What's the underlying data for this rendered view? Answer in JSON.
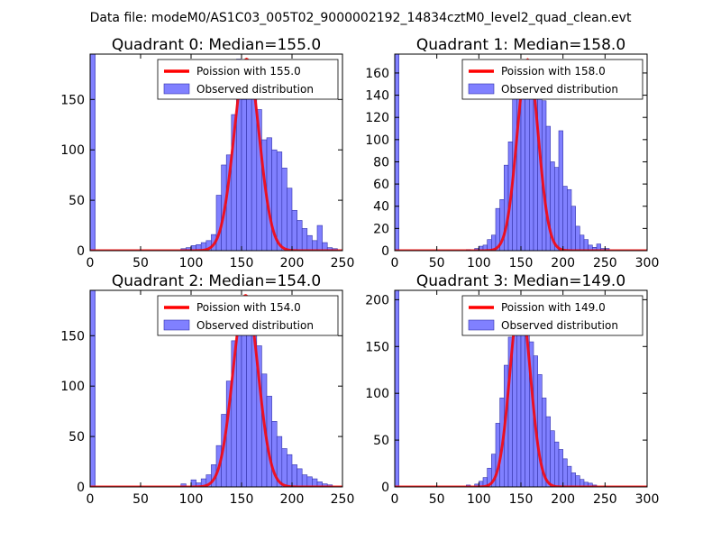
{
  "figure": {
    "suptitle": "Data file: modeM0/AS1C03_005T02_9000002192_14834cztM0_level2_quad_clean.evt"
  },
  "colors": {
    "hist_fill": "#8080ff",
    "hist_edge": "#3333aa",
    "poisson_line": "#ff0000",
    "axes": "#000000",
    "background": "#ffffff"
  },
  "chart_data": [
    {
      "type": "bar",
      "title": "Quadrant 0: Median=155.0",
      "median": 155.0,
      "xlim": [
        0,
        250
      ],
      "ylim": [
        0,
        195
      ],
      "xticks": [
        0,
        50,
        100,
        150,
        200,
        250
      ],
      "yticks": [
        0,
        50,
        100,
        150
      ],
      "bin_width": 5,
      "bins": [
        {
          "x": 0,
          "count": 195
        },
        {
          "x": 90,
          "count": 2
        },
        {
          "x": 95,
          "count": 3
        },
        {
          "x": 100,
          "count": 5
        },
        {
          "x": 105,
          "count": 6
        },
        {
          "x": 110,
          "count": 8
        },
        {
          "x": 115,
          "count": 10
        },
        {
          "x": 120,
          "count": 16
        },
        {
          "x": 125,
          "count": 55
        },
        {
          "x": 130,
          "count": 85
        },
        {
          "x": 135,
          "count": 95
        },
        {
          "x": 140,
          "count": 135
        },
        {
          "x": 145,
          "count": 190
        },
        {
          "x": 150,
          "count": 150
        },
        {
          "x": 155,
          "count": 185
        },
        {
          "x": 160,
          "count": 168
        },
        {
          "x": 165,
          "count": 140
        },
        {
          "x": 170,
          "count": 110
        },
        {
          "x": 175,
          "count": 112
        },
        {
          "x": 180,
          "count": 100
        },
        {
          "x": 185,
          "count": 98
        },
        {
          "x": 190,
          "count": 82
        },
        {
          "x": 195,
          "count": 62
        },
        {
          "x": 200,
          "count": 40
        },
        {
          "x": 205,
          "count": 30
        },
        {
          "x": 210,
          "count": 22
        },
        {
          "x": 215,
          "count": 15
        },
        {
          "x": 220,
          "count": 10
        },
        {
          "x": 225,
          "count": 25
        },
        {
          "x": 230,
          "count": 8
        },
        {
          "x": 235,
          "count": 3
        },
        {
          "x": 240,
          "count": 2
        }
      ],
      "poisson": {
        "lambda": 155.0,
        "peak": 190
      },
      "legend": {
        "location": "upper-right",
        "line_label": "Poission with 155.0",
        "bar_label": "Observed distribution"
      }
    },
    {
      "type": "bar",
      "title": "Quadrant 1: Median=158.0",
      "median": 158.0,
      "xlim": [
        0,
        300
      ],
      "ylim": [
        0,
        177
      ],
      "xticks": [
        0,
        50,
        100,
        150,
        200,
        250,
        300
      ],
      "yticks": [
        0,
        20,
        40,
        60,
        80,
        100,
        120,
        140,
        160
      ],
      "bin_width": 5,
      "bins": [
        {
          "x": 0,
          "count": 177
        },
        {
          "x": 85,
          "count": 1
        },
        {
          "x": 95,
          "count": 2
        },
        {
          "x": 100,
          "count": 4
        },
        {
          "x": 105,
          "count": 5
        },
        {
          "x": 110,
          "count": 10
        },
        {
          "x": 115,
          "count": 14
        },
        {
          "x": 120,
          "count": 38
        },
        {
          "x": 125,
          "count": 46
        },
        {
          "x": 130,
          "count": 77
        },
        {
          "x": 135,
          "count": 98
        },
        {
          "x": 140,
          "count": 138
        },
        {
          "x": 145,
          "count": 155
        },
        {
          "x": 150,
          "count": 140
        },
        {
          "x": 155,
          "count": 172
        },
        {
          "x": 160,
          "count": 138
        },
        {
          "x": 165,
          "count": 155
        },
        {
          "x": 170,
          "count": 140
        },
        {
          "x": 175,
          "count": 135
        },
        {
          "x": 180,
          "count": 112
        },
        {
          "x": 185,
          "count": 80
        },
        {
          "x": 190,
          "count": 75
        },
        {
          "x": 195,
          "count": 108
        },
        {
          "x": 200,
          "count": 58
        },
        {
          "x": 205,
          "count": 55
        },
        {
          "x": 210,
          "count": 40
        },
        {
          "x": 215,
          "count": 22
        },
        {
          "x": 220,
          "count": 14
        },
        {
          "x": 225,
          "count": 10
        },
        {
          "x": 230,
          "count": 5
        },
        {
          "x": 235,
          "count": 3
        },
        {
          "x": 240,
          "count": 6
        },
        {
          "x": 245,
          "count": 2
        },
        {
          "x": 250,
          "count": 2
        }
      ],
      "poisson": {
        "lambda": 158.0,
        "peak": 172
      },
      "legend": {
        "location": "upper-right",
        "line_label": "Poission with 158.0",
        "bar_label": "Observed distribution"
      }
    },
    {
      "type": "bar",
      "title": "Quadrant 2: Median=154.0",
      "median": 154.0,
      "xlim": [
        0,
        250
      ],
      "ylim": [
        0,
        195
      ],
      "xticks": [
        0,
        50,
        100,
        150,
        200,
        250
      ],
      "yticks": [
        0,
        50,
        100,
        150
      ],
      "bin_width": 5,
      "bins": [
        {
          "x": 0,
          "count": 195
        },
        {
          "x": 90,
          "count": 3
        },
        {
          "x": 100,
          "count": 7
        },
        {
          "x": 105,
          "count": 4
        },
        {
          "x": 110,
          "count": 8
        },
        {
          "x": 115,
          "count": 12
        },
        {
          "x": 120,
          "count": 22
        },
        {
          "x": 125,
          "count": 41
        },
        {
          "x": 130,
          "count": 72
        },
        {
          "x": 135,
          "count": 105
        },
        {
          "x": 140,
          "count": 145
        },
        {
          "x": 145,
          "count": 160
        },
        {
          "x": 150,
          "count": 175
        },
        {
          "x": 155,
          "count": 188
        },
        {
          "x": 160,
          "count": 160
        },
        {
          "x": 165,
          "count": 140
        },
        {
          "x": 170,
          "count": 112
        },
        {
          "x": 175,
          "count": 90
        },
        {
          "x": 180,
          "count": 65
        },
        {
          "x": 185,
          "count": 50
        },
        {
          "x": 190,
          "count": 38
        },
        {
          "x": 195,
          "count": 32
        },
        {
          "x": 200,
          "count": 22
        },
        {
          "x": 205,
          "count": 18
        },
        {
          "x": 210,
          "count": 12
        },
        {
          "x": 215,
          "count": 10
        },
        {
          "x": 220,
          "count": 8
        },
        {
          "x": 225,
          "count": 5
        },
        {
          "x": 230,
          "count": 3
        },
        {
          "x": 235,
          "count": 2
        }
      ],
      "poisson": {
        "lambda": 154.0,
        "peak": 190
      },
      "legend": {
        "location": "upper-right",
        "line_label": "Poission with 154.0",
        "bar_label": "Observed distribution"
      }
    },
    {
      "type": "bar",
      "title": "Quadrant 3: Median=149.0",
      "median": 149.0,
      "xlim": [
        0,
        300
      ],
      "ylim": [
        0,
        210
      ],
      "xticks": [
        0,
        50,
        100,
        150,
        200,
        250,
        300
      ],
      "yticks": [
        0,
        50,
        100,
        150,
        200
      ],
      "bin_width": 5,
      "bins": [
        {
          "x": 0,
          "count": 210
        },
        {
          "x": 85,
          "count": 2
        },
        {
          "x": 95,
          "count": 3
        },
        {
          "x": 100,
          "count": 6
        },
        {
          "x": 105,
          "count": 10
        },
        {
          "x": 110,
          "count": 20
        },
        {
          "x": 115,
          "count": 35
        },
        {
          "x": 120,
          "count": 68
        },
        {
          "x": 125,
          "count": 95
        },
        {
          "x": 130,
          "count": 130
        },
        {
          "x": 135,
          "count": 160
        },
        {
          "x": 140,
          "count": 180
        },
        {
          "x": 145,
          "count": 188
        },
        {
          "x": 150,
          "count": 192
        },
        {
          "x": 155,
          "count": 175
        },
        {
          "x": 160,
          "count": 155
        },
        {
          "x": 165,
          "count": 140
        },
        {
          "x": 170,
          "count": 120
        },
        {
          "x": 175,
          "count": 95
        },
        {
          "x": 180,
          "count": 75
        },
        {
          "x": 185,
          "count": 60
        },
        {
          "x": 190,
          "count": 48
        },
        {
          "x": 195,
          "count": 40
        },
        {
          "x": 200,
          "count": 30
        },
        {
          "x": 205,
          "count": 22
        },
        {
          "x": 210,
          "count": 15
        },
        {
          "x": 215,
          "count": 12
        },
        {
          "x": 220,
          "count": 8
        },
        {
          "x": 225,
          "count": 5
        },
        {
          "x": 230,
          "count": 4
        },
        {
          "x": 235,
          "count": 2
        }
      ],
      "poisson": {
        "lambda": 149.0,
        "peak": 200
      },
      "legend": {
        "location": "upper-right",
        "line_label": "Poission with 149.0",
        "bar_label": "Observed distribution"
      }
    }
  ]
}
